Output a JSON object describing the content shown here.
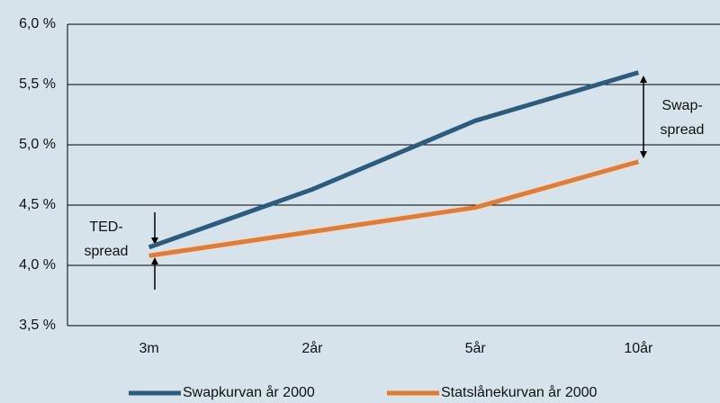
{
  "chart_data": {
    "type": "line",
    "categories": [
      "3m",
      "2år",
      "5år",
      "10år"
    ],
    "series": [
      {
        "name": "Swapkurvan år 2000",
        "color": "#2b5b7f",
        "values": [
          4.15,
          4.63,
          5.2,
          5.6
        ]
      },
      {
        "name": "Statslånekurvan år 2000",
        "color": "#e87a2e",
        "values": [
          4.08,
          4.28,
          4.48,
          4.86
        ]
      }
    ],
    "ylim": [
      3.5,
      6.0
    ],
    "yticks": [
      {
        "value": 3.5,
        "label": "3,5 %"
      },
      {
        "value": 4.0,
        "label": "4,0 %"
      },
      {
        "value": 4.5,
        "label": "4,5 %"
      },
      {
        "value": 5.0,
        "label": "5,0 %"
      },
      {
        "value": 5.5,
        "label": "5,5 %"
      },
      {
        "value": 6.0,
        "label": "6,0 %"
      }
    ],
    "grid": true,
    "annotations": [
      [
        "TED-",
        "spread"
      ],
      [
        "Swap-",
        "spread"
      ]
    ]
  }
}
